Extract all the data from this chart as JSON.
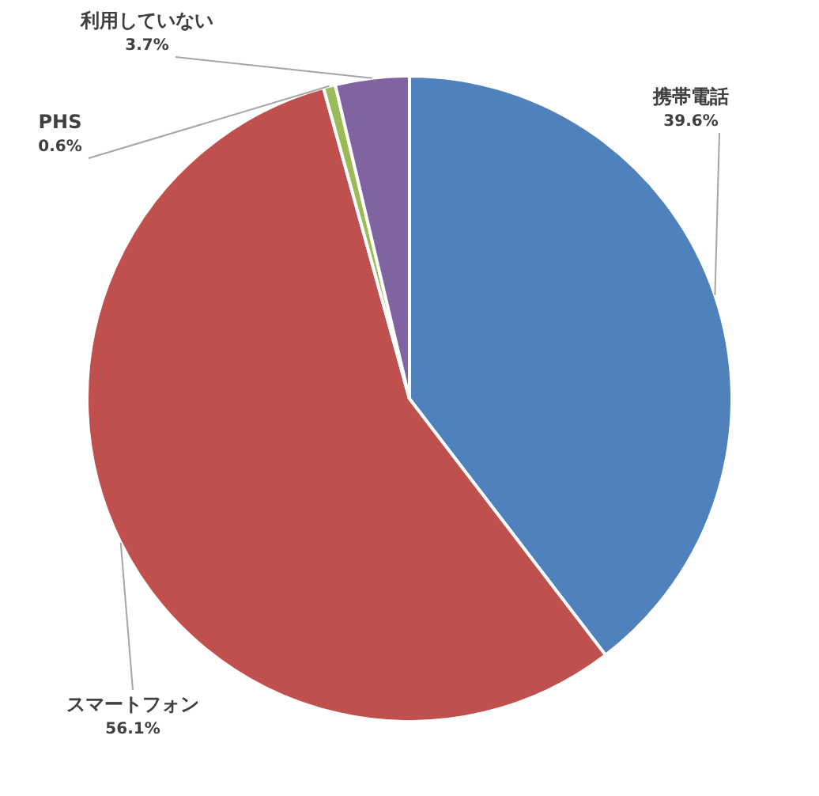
{
  "chart_data": {
    "type": "pie",
    "categories": [
      "携帯電話",
      "スマートフォン",
      "PHS",
      "利用していない"
    ],
    "values": [
      39.6,
      56.1,
      0.6,
      3.7
    ],
    "value_labels": [
      "39.6%",
      "56.1%",
      "0.6%",
      "3.7%"
    ],
    "colors": [
      "#4f81bd",
      "#c0504d",
      "#9bbb59",
      "#8064a2"
    ],
    "legend": false
  }
}
